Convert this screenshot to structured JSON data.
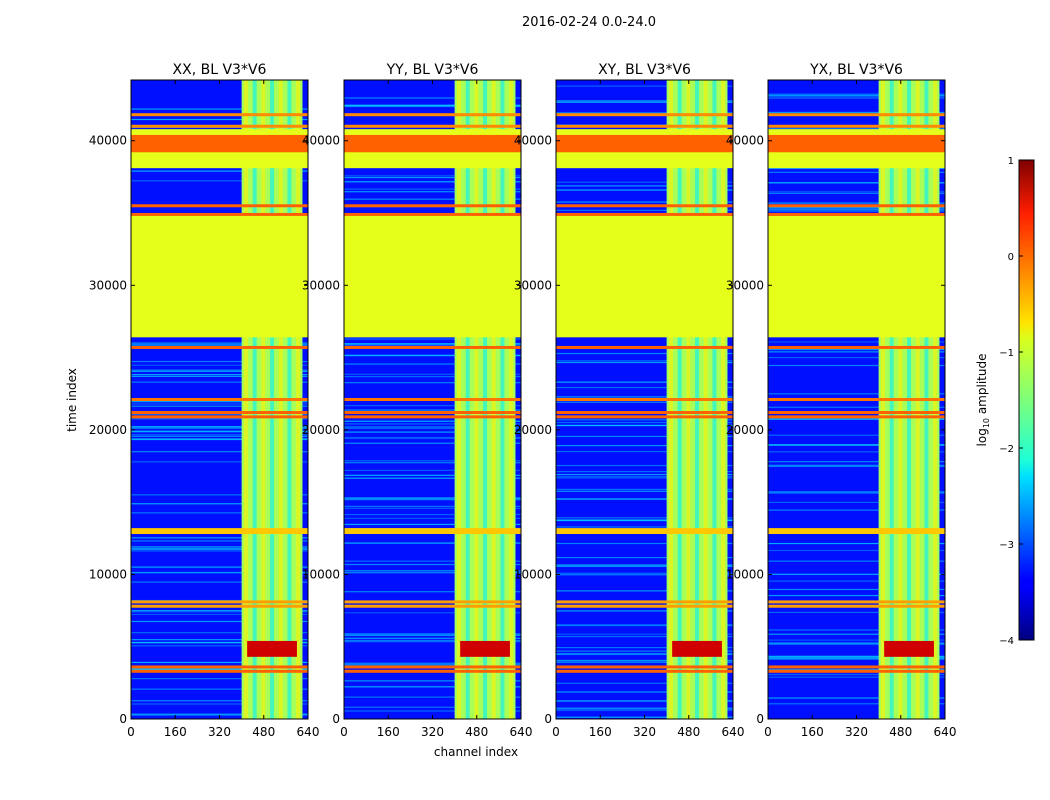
{
  "chart_data": {
    "type": "heatmap",
    "suptitle": "2016-02-24 0.0-24.0",
    "xlabel": "channel index",
    "ylabel": "time index",
    "xlim": [
      0,
      640
    ],
    "ylim": [
      0,
      44200
    ],
    "x_ticks": [
      "0",
      "160",
      "320",
      "480",
      "640"
    ],
    "x_tick_values": [
      0,
      160,
      320,
      480,
      640
    ],
    "y_ticks": [
      "0",
      "10000",
      "20000",
      "30000",
      "40000"
    ],
    "y_tick_values": [
      0,
      10000,
      20000,
      30000,
      40000
    ],
    "panels": [
      {
        "title": "XX, BL V3*V6"
      },
      {
        "title": "YY, BL V3*V6"
      },
      {
        "title": "XY, BL V3*V6"
      },
      {
        "title": "YX, BL V3*V6"
      }
    ],
    "colorbar": {
      "label": "log10 amplitude",
      "label_base": "log",
      "label_sub": "10",
      "label_rest": " amplitude",
      "range": [
        -4,
        1
      ],
      "ticks": [
        "1",
        "0",
        "−1",
        "−2",
        "−3",
        "−4"
      ],
      "tick_values": [
        1,
        0,
        -1,
        -2,
        -3,
        -4
      ],
      "colormap": "jet"
    },
    "features": {
      "background_level": -3.3,
      "flagged_fill_level": -1.0,
      "flagged_blocks": [
        {
          "t_start": 26400,
          "t_end": 35000,
          "level": -1.0
        },
        {
          "t_start": 38100,
          "t_end": 40800,
          "level": -1.0
        },
        {
          "t_start": 39200,
          "t_end": 40400,
          "level": -0.1
        }
      ],
      "rfi_channel_band": [
        400,
        620
      ],
      "rfi_band_level": -1.3,
      "hot_spot": {
        "channels": [
          420,
          600
        ],
        "times": [
          4300,
          5400
        ],
        "level": 0.6
      },
      "horizontal_lines": [
        {
          "t": 35500,
          "level": -0.1
        },
        {
          "t": 34900,
          "level": -0.1
        },
        {
          "t": 25700,
          "level": -0.1
        },
        {
          "t": 22100,
          "level": -0.2
        },
        {
          "t": 21200,
          "level": -0.1
        },
        {
          "t": 20900,
          "level": -0.1
        },
        {
          "t": 13100,
          "level": -0.6
        },
        {
          "t": 12900,
          "level": -0.6
        },
        {
          "t": 8100,
          "level": -0.4
        },
        {
          "t": 7800,
          "level": -0.4
        },
        {
          "t": 3600,
          "level": -0.1
        },
        {
          "t": 3300,
          "level": -0.1
        },
        {
          "t": 41800,
          "level": -0.3
        },
        {
          "t": 41000,
          "level": -0.3
        }
      ]
    }
  }
}
